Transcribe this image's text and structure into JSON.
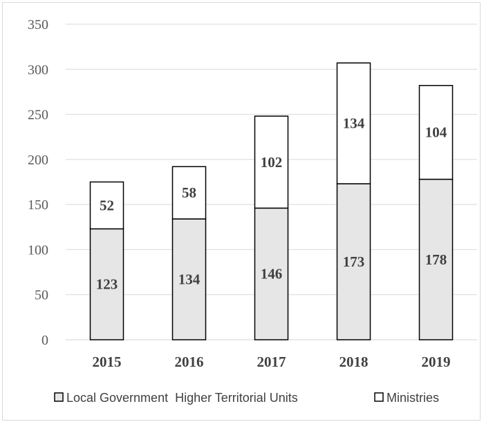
{
  "chart_data": {
    "type": "bar",
    "stacked": true,
    "title": "",
    "xlabel": "",
    "ylabel": "",
    "categories": [
      "2015",
      "2016",
      "2017",
      "2018",
      "2019"
    ],
    "series": [
      {
        "name": "Local Government Higher Territorial Units",
        "values": [
          123,
          134,
          146,
          173,
          178
        ],
        "color": "#e6e6e6"
      },
      {
        "name": "Ministries",
        "values": [
          52,
          58,
          102,
          134,
          104
        ],
        "color": "#ffffff"
      }
    ],
    "ylim": [
      0,
      350
    ],
    "yticks": [
      0,
      50,
      100,
      150,
      200,
      250,
      300,
      350
    ],
    "grid": true,
    "legend": "bottom",
    "legend_text": "Local Government  Higher Territorial Units",
    "legend_text_2": "Ministries"
  }
}
